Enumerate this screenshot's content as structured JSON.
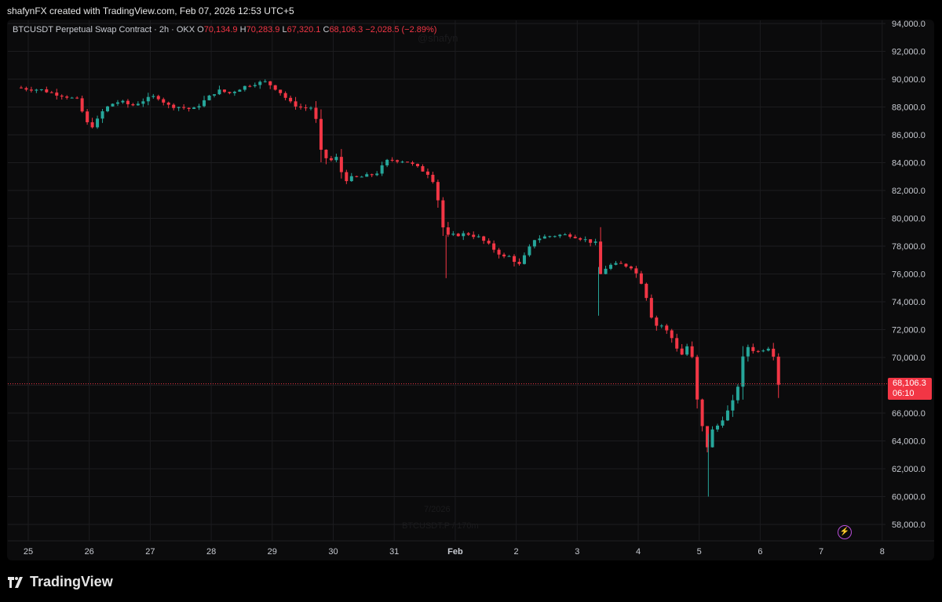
{
  "header": {
    "text": "shafynFX created with TradingView.com, Feb 07, 2026 12:53 UTC+5"
  },
  "legend": {
    "symbol": "BTCUSDT Perpetual Swap Contract · 2h · OKX",
    "open_label": "O",
    "open": "70,134.9",
    "high_label": "H",
    "high": "70,283.9",
    "low_label": "L",
    "low": "67,320.1",
    "close_label": "C",
    "close": "68,106.3",
    "change": "−2,028.5 (−2.89%)"
  },
  "watermarks": {
    "top": "@shafyn",
    "bottom_line1": "7/2026",
    "bottom_line2": "BTCUSDT.P / 170m"
  },
  "price_badge": {
    "price": "68,106.3",
    "countdown": "06:10"
  },
  "footer": {
    "brand": "TradingView"
  },
  "colors": {
    "up": "#26a69a",
    "down": "#f23645",
    "grid": "#1c1c1f",
    "badge": "#f23645"
  },
  "icons": {
    "footer_logo": "tradingview-logo-icon",
    "bolt": "lightning-bolt-icon"
  },
  "chart_data": {
    "type": "candlestick",
    "timeframe": "2h",
    "ylim": [
      57000,
      94500
    ],
    "yticks": [
      "94,000.0",
      "92,000.0",
      "90,000.0",
      "88,000.0",
      "86,000.0",
      "84,000.0",
      "82,000.0",
      "80,000.0",
      "78,000.0",
      "76,000.0",
      "74,000.0",
      "72,000.0",
      "70,000.0",
      "68,000.0",
      "66,000.0",
      "64,000.0",
      "62,000.0",
      "60,000.0",
      "58,000.0"
    ],
    "xticks": [
      "25",
      "26",
      "27",
      "28",
      "29",
      "30",
      "31",
      "Feb",
      "2",
      "3",
      "4",
      "5",
      "6",
      "7",
      "8"
    ],
    "last_price": 68106.3,
    "close_path": [
      [
        24.8,
        89400
      ],
      [
        25.0,
        89300
      ],
      [
        25.2,
        89250
      ],
      [
        25.4,
        89000
      ],
      [
        25.6,
        88800
      ],
      [
        25.8,
        88500
      ],
      [
        25.95,
        87000
      ],
      [
        26.0,
        86500
      ],
      [
        26.1,
        86800
      ],
      [
        26.2,
        87600
      ],
      [
        26.35,
        88200
      ],
      [
        26.5,
        88400
      ],
      [
        26.7,
        88100
      ],
      [
        26.9,
        88500
      ],
      [
        27.1,
        88800
      ],
      [
        27.3,
        88100
      ],
      [
        27.5,
        88000
      ],
      [
        27.7,
        87800
      ],
      [
        27.9,
        88500
      ],
      [
        28.1,
        89200
      ],
      [
        28.3,
        89000
      ],
      [
        28.5,
        89400
      ],
      [
        28.7,
        89700
      ],
      [
        28.9,
        89800
      ],
      [
        29.1,
        89200
      ],
      [
        29.3,
        88300
      ],
      [
        29.5,
        87900
      ],
      [
        29.7,
        88000
      ],
      [
        29.75,
        85200
      ],
      [
        29.85,
        84400
      ],
      [
        30.0,
        84100
      ],
      [
        30.1,
        84600
      ],
      [
        30.15,
        82700
      ],
      [
        30.3,
        82900
      ],
      [
        30.5,
        83000
      ],
      [
        30.7,
        83200
      ],
      [
        30.9,
        84200
      ],
      [
        31.0,
        84200
      ],
      [
        31.2,
        84100
      ],
      [
        31.4,
        83600
      ],
      [
        31.6,
        83100
      ],
      [
        31.7,
        82000
      ],
      [
        31.75,
        80000
      ],
      [
        31.85,
        78700
      ],
      [
        32.0,
        78800
      ],
      [
        32.2,
        78900
      ],
      [
        32.4,
        78600
      ],
      [
        32.6,
        77900
      ],
      [
        32.8,
        77200
      ],
      [
        32.95,
        77300
      ],
      [
        33.0,
        76300
      ],
      [
        33.1,
        77000
      ],
      [
        33.3,
        78500
      ],
      [
        33.5,
        78700
      ],
      [
        33.7,
        78800
      ],
      [
        33.9,
        78800
      ],
      [
        34.1,
        78500
      ],
      [
        34.3,
        78200
      ],
      [
        34.35,
        75800
      ],
      [
        34.5,
        76600
      ],
      [
        34.7,
        76700
      ],
      [
        34.9,
        76500
      ],
      [
        35.0,
        75800
      ],
      [
        35.1,
        75000
      ],
      [
        35.2,
        73100
      ],
      [
        35.3,
        72300
      ],
      [
        35.4,
        72300
      ],
      [
        35.55,
        71400
      ],
      [
        35.6,
        71000
      ],
      [
        35.7,
        70100
      ],
      [
        35.8,
        70800
      ],
      [
        35.9,
        69800
      ],
      [
        35.95,
        67300
      ],
      [
        36.05,
        65000
      ],
      [
        36.1,
        63800
      ],
      [
        36.15,
        63500
      ],
      [
        36.2,
        64700
      ],
      [
        36.3,
        65100
      ],
      [
        36.45,
        66000
      ],
      [
        36.6,
        67200
      ],
      [
        36.7,
        69500
      ],
      [
        36.75,
        70900
      ],
      [
        36.9,
        70500
      ],
      [
        37.0,
        70400
      ],
      [
        37.1,
        70800
      ],
      [
        37.2,
        70600
      ],
      [
        37.3,
        68106
      ]
    ]
  }
}
